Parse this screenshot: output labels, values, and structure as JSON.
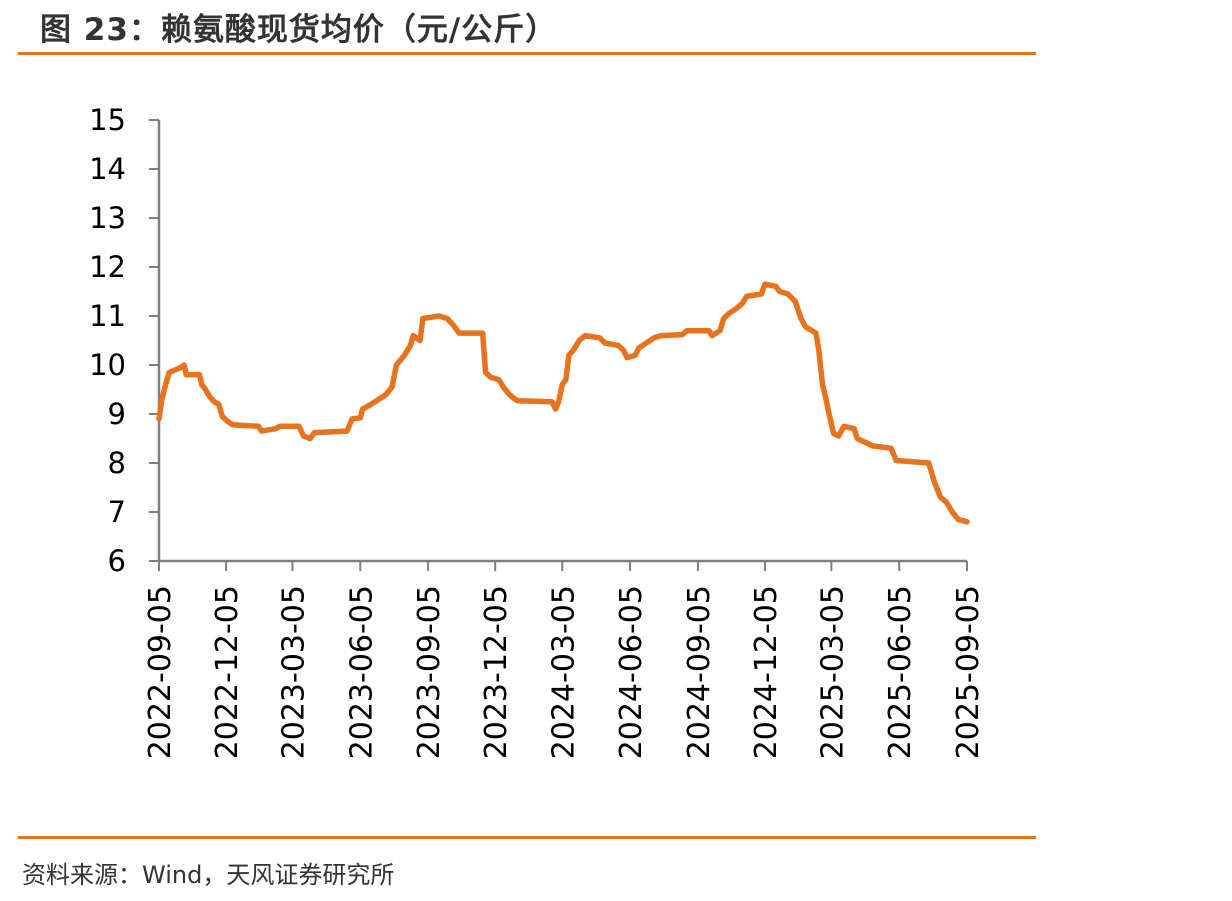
{
  "header": {
    "title": "图 23：赖氨酸现货均价（元/公斤）",
    "rule_color": "#E8731E"
  },
  "footer": {
    "source": "资料来源：Wind，天风证券研究所"
  },
  "chart_data": {
    "type": "line",
    "title": "赖氨酸现货均价（元/公斤）",
    "xlabel": "",
    "ylabel": "",
    "ylim": [
      6,
      15
    ],
    "yticks": [
      "6",
      "7",
      "8",
      "9",
      "10",
      "11",
      "12",
      "13",
      "14",
      "15"
    ],
    "xlim": [
      "2022-09-05",
      "2025-09-05"
    ],
    "xticks": [
      "2022-09-05",
      "2022-12-05",
      "2023-03-05",
      "2023-06-05",
      "2023-09-05",
      "2023-12-05",
      "2024-03-05",
      "2024-06-05",
      "2024-09-05",
      "2024-12-05",
      "2025-03-05",
      "2025-06-05",
      "2025-09-05"
    ],
    "grid": false,
    "legend": "none",
    "line_color": "#E8731E",
    "series": [
      {
        "points": [
          [
            "2022-09-05",
            8.9
          ],
          [
            "2022-09-09",
            9.3
          ],
          [
            "2022-09-14",
            9.6
          ],
          [
            "2022-09-19",
            9.85
          ],
          [
            "2022-09-27",
            9.9
          ],
          [
            "2022-10-05",
            9.95
          ],
          [
            "2022-10-09",
            10.0
          ],
          [
            "2022-10-12",
            9.8
          ],
          [
            "2022-10-30",
            9.8
          ],
          [
            "2022-11-02",
            9.6
          ],
          [
            "2022-11-07",
            9.5
          ],
          [
            "2022-11-13",
            9.35
          ],
          [
            "2022-11-19",
            9.25
          ],
          [
            "2022-11-25",
            9.2
          ],
          [
            "2022-11-30",
            8.95
          ],
          [
            "2022-12-07",
            8.85
          ],
          [
            "2022-12-14",
            8.78
          ],
          [
            "2023-01-18",
            8.75
          ],
          [
            "2023-01-22",
            8.65
          ],
          [
            "2023-02-10",
            8.7
          ],
          [
            "2023-02-16",
            8.75
          ],
          [
            "2023-03-14",
            8.75
          ],
          [
            "2023-03-20",
            8.55
          ],
          [
            "2023-03-29",
            8.5
          ],
          [
            "2023-04-04",
            8.62
          ],
          [
            "2023-05-18",
            8.65
          ],
          [
            "2023-05-25",
            8.9
          ],
          [
            "2023-06-05",
            8.92
          ],
          [
            "2023-06-08",
            9.1
          ],
          [
            "2023-06-20",
            9.2
          ],
          [
            "2023-06-30",
            9.3
          ],
          [
            "2023-07-10",
            9.4
          ],
          [
            "2023-07-18",
            9.55
          ],
          [
            "2023-07-24",
            10.0
          ],
          [
            "2023-08-04",
            10.2
          ],
          [
            "2023-08-12",
            10.4
          ],
          [
            "2023-08-16",
            10.6
          ],
          [
            "2023-08-25",
            10.5
          ],
          [
            "2023-08-29",
            10.95
          ],
          [
            "2023-09-20",
            11.0
          ],
          [
            "2023-10-01",
            10.95
          ],
          [
            "2023-10-10",
            10.8
          ],
          [
            "2023-10-17",
            10.65
          ],
          [
            "2023-11-18",
            10.65
          ],
          [
            "2023-11-22",
            9.85
          ],
          [
            "2023-11-29",
            9.75
          ],
          [
            "2023-12-10",
            9.7
          ],
          [
            "2023-12-16",
            9.55
          ],
          [
            "2023-12-24",
            9.4
          ],
          [
            "2024-01-01",
            9.3
          ],
          [
            "2024-01-05",
            9.27
          ],
          [
            "2024-02-20",
            9.25
          ],
          [
            "2024-02-25",
            9.1
          ],
          [
            "2024-02-29",
            9.25
          ],
          [
            "2024-03-05",
            9.6
          ],
          [
            "2024-03-10",
            9.7
          ],
          [
            "2024-03-14",
            10.2
          ],
          [
            "2024-03-20",
            10.3
          ],
          [
            "2024-03-28",
            10.5
          ],
          [
            "2024-04-05",
            10.6
          ],
          [
            "2024-04-25",
            10.55
          ],
          [
            "2024-05-02",
            10.45
          ],
          [
            "2024-05-20",
            10.4
          ],
          [
            "2024-05-27",
            10.3
          ],
          [
            "2024-06-01",
            10.15
          ],
          [
            "2024-06-12",
            10.2
          ],
          [
            "2024-06-17",
            10.35
          ],
          [
            "2024-06-27",
            10.45
          ],
          [
            "2024-07-07",
            10.55
          ],
          [
            "2024-07-17",
            10.6
          ],
          [
            "2024-08-15",
            10.62
          ],
          [
            "2024-08-21",
            10.7
          ],
          [
            "2024-09-20",
            10.7
          ],
          [
            "2024-09-24",
            10.6
          ],
          [
            "2024-10-05",
            10.7
          ],
          [
            "2024-10-10",
            10.95
          ],
          [
            "2024-10-17",
            11.05
          ],
          [
            "2024-10-27",
            11.15
          ],
          [
            "2024-11-04",
            11.25
          ],
          [
            "2024-11-10",
            11.4
          ],
          [
            "2024-11-30",
            11.45
          ],
          [
            "2024-12-05",
            11.65
          ],
          [
            "2024-12-20",
            11.6
          ],
          [
            "2024-12-25",
            11.5
          ],
          [
            "2025-01-05",
            11.45
          ],
          [
            "2025-01-15",
            11.3
          ],
          [
            "2025-01-23",
            10.95
          ],
          [
            "2025-01-29",
            10.78
          ],
          [
            "2025-02-12",
            10.65
          ],
          [
            "2025-02-16",
            10.3
          ],
          [
            "2025-02-21",
            9.6
          ],
          [
            "2025-02-25",
            9.35
          ],
          [
            "2025-03-02",
            9.0
          ],
          [
            "2025-03-08",
            8.6
          ],
          [
            "2025-03-15",
            8.55
          ],
          [
            "2025-03-22",
            8.75
          ],
          [
            "2025-04-05",
            8.7
          ],
          [
            "2025-04-09",
            8.5
          ],
          [
            "2025-04-16",
            8.45
          ],
          [
            "2025-04-23",
            8.4
          ],
          [
            "2025-04-30",
            8.35
          ],
          [
            "2025-05-25",
            8.3
          ],
          [
            "2025-06-01",
            8.05
          ],
          [
            "2025-07-15",
            8.0
          ],
          [
            "2025-07-23",
            7.6
          ],
          [
            "2025-07-31",
            7.3
          ],
          [
            "2025-08-08",
            7.2
          ],
          [
            "2025-08-16",
            7.0
          ],
          [
            "2025-08-24",
            6.85
          ],
          [
            "2025-09-05",
            6.8
          ]
        ]
      }
    ]
  }
}
